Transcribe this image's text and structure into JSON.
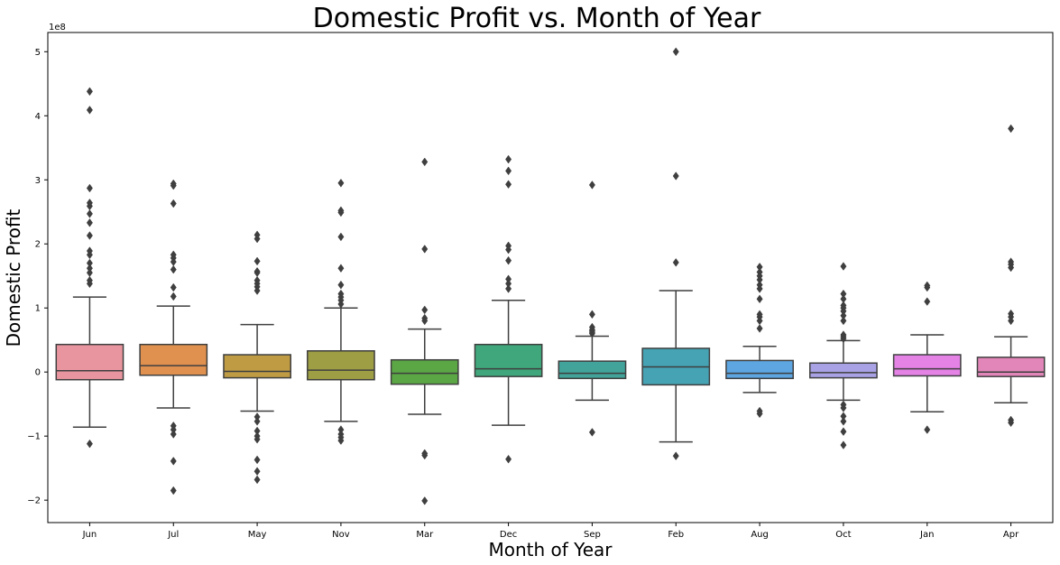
{
  "chart_data": {
    "type": "box",
    "title": "Domestic Profit vs. Month of Year",
    "xlabel": "Month of Year",
    "ylabel": "Domestic Profit",
    "y_offset_label": "1e8",
    "y_unit_multiplier": 100000000,
    "ylim": [
      -2.35,
      5.3
    ],
    "yticks": [
      -2,
      -1,
      0,
      1,
      2,
      3,
      4,
      5
    ],
    "ytick_labels": [
      "−2",
      "−1",
      "0",
      "1",
      "2",
      "3",
      "4",
      "5"
    ],
    "grid": false,
    "categories": [
      "Jun",
      "Jul",
      "May",
      "Nov",
      "Mar",
      "Dec",
      "Sep",
      "Feb",
      "Aug",
      "Oct",
      "Jan",
      "Apr"
    ],
    "boxes": [
      {
        "category": "Jun",
        "color": "#E8959F",
        "whisker_low": -0.86,
        "q1": -0.12,
        "median": 0.02,
        "q3": 0.43,
        "whisker_high": 1.17,
        "outliers": [
          4.38,
          4.09,
          2.87,
          2.64,
          2.59,
          2.47,
          2.33,
          2.13,
          1.89,
          1.83,
          1.7,
          1.62,
          1.55,
          1.43,
          1.38,
          -1.12
        ]
      },
      {
        "category": "Jul",
        "color": "#E0914F",
        "whisker_low": -0.56,
        "q1": -0.05,
        "median": 0.1,
        "q3": 0.43,
        "whisker_high": 1.03,
        "outliers": [
          2.94,
          2.91,
          2.63,
          1.83,
          1.78,
          1.72,
          1.6,
          1.32,
          1.18,
          -0.84,
          -0.9,
          -0.97,
          -1.39,
          -1.85
        ]
      },
      {
        "category": "May",
        "color": "#BF9C44",
        "whisker_low": -0.61,
        "q1": -0.09,
        "median": 0.01,
        "q3": 0.27,
        "whisker_high": 0.74,
        "outliers": [
          2.14,
          2.08,
          1.73,
          1.57,
          1.55,
          1.43,
          1.38,
          1.33,
          1.27,
          -0.7,
          -0.77,
          -0.92,
          -1.0,
          -1.05,
          -1.37,
          -1.55,
          -1.68
        ]
      },
      {
        "category": "Nov",
        "color": "#9E9E44",
        "whisker_low": -0.77,
        "q1": -0.12,
        "median": 0.03,
        "q3": 0.33,
        "whisker_high": 1.0,
        "outliers": [
          2.95,
          2.52,
          2.49,
          2.11,
          1.62,
          1.36,
          1.22,
          1.17,
          1.12,
          1.06,
          -0.9,
          -0.97,
          -1.02,
          -1.07
        ]
      },
      {
        "category": "Mar",
        "color": "#5BA645",
        "whisker_low": -0.66,
        "q1": -0.19,
        "median": -0.02,
        "q3": 0.19,
        "whisker_high": 0.67,
        "outliers": [
          3.28,
          1.92,
          0.97,
          0.84,
          0.8,
          -1.27,
          -1.3,
          -2.01
        ]
      },
      {
        "category": "Dec",
        "color": "#3FA77B",
        "whisker_low": -0.83,
        "q1": -0.07,
        "median": 0.05,
        "q3": 0.43,
        "whisker_high": 1.12,
        "outliers": [
          3.32,
          3.14,
          2.93,
          1.97,
          1.91,
          1.74,
          1.45,
          1.38,
          1.3,
          -1.36
        ]
      },
      {
        "category": "Sep",
        "color": "#41A39A",
        "whisker_low": -0.44,
        "q1": -0.1,
        "median": -0.02,
        "q3": 0.17,
        "whisker_high": 0.56,
        "outliers": [
          2.92,
          0.9,
          0.7,
          0.66,
          0.64,
          0.62,
          0.6,
          -0.94
        ]
      },
      {
        "category": "Feb",
        "color": "#45A3B4",
        "whisker_low": -1.09,
        "q1": -0.2,
        "median": 0.08,
        "q3": 0.37,
        "whisker_high": 1.27,
        "outliers": [
          5.0,
          3.06,
          1.71,
          -1.31
        ]
      },
      {
        "category": "Aug",
        "color": "#5DA6E2",
        "whisker_low": -0.32,
        "q1": -0.1,
        "median": -0.02,
        "q3": 0.18,
        "whisker_high": 0.4,
        "outliers": [
          1.64,
          1.56,
          1.5,
          1.44,
          1.36,
          1.3,
          1.14,
          0.9,
          0.86,
          0.8,
          0.68,
          -0.61,
          -0.65
        ]
      },
      {
        "category": "Oct",
        "color": "#A9A3E6",
        "whisker_low": -0.44,
        "q1": -0.09,
        "median": -0.01,
        "q3": 0.14,
        "whisker_high": 0.49,
        "outliers": [
          1.65,
          1.22,
          1.14,
          1.04,
          1.0,
          0.95,
          0.88,
          0.8,
          0.58,
          0.55,
          0.52,
          -0.51,
          -0.56,
          -0.69,
          -0.77,
          -0.93,
          -1.14
        ]
      },
      {
        "category": "Jan",
        "color": "#E482E6",
        "whisker_low": -0.62,
        "q1": -0.06,
        "median": 0.05,
        "q3": 0.27,
        "whisker_high": 0.58,
        "outliers": [
          1.35,
          1.32,
          1.1,
          -0.9
        ]
      },
      {
        "category": "Apr",
        "color": "#E286B9",
        "whisker_low": -0.48,
        "q1": -0.07,
        "median": 0.0,
        "q3": 0.23,
        "whisker_high": 0.55,
        "outliers": [
          3.8,
          1.72,
          1.68,
          1.63,
          0.91,
          0.86,
          0.8,
          -0.75,
          -0.79
        ]
      }
    ]
  }
}
